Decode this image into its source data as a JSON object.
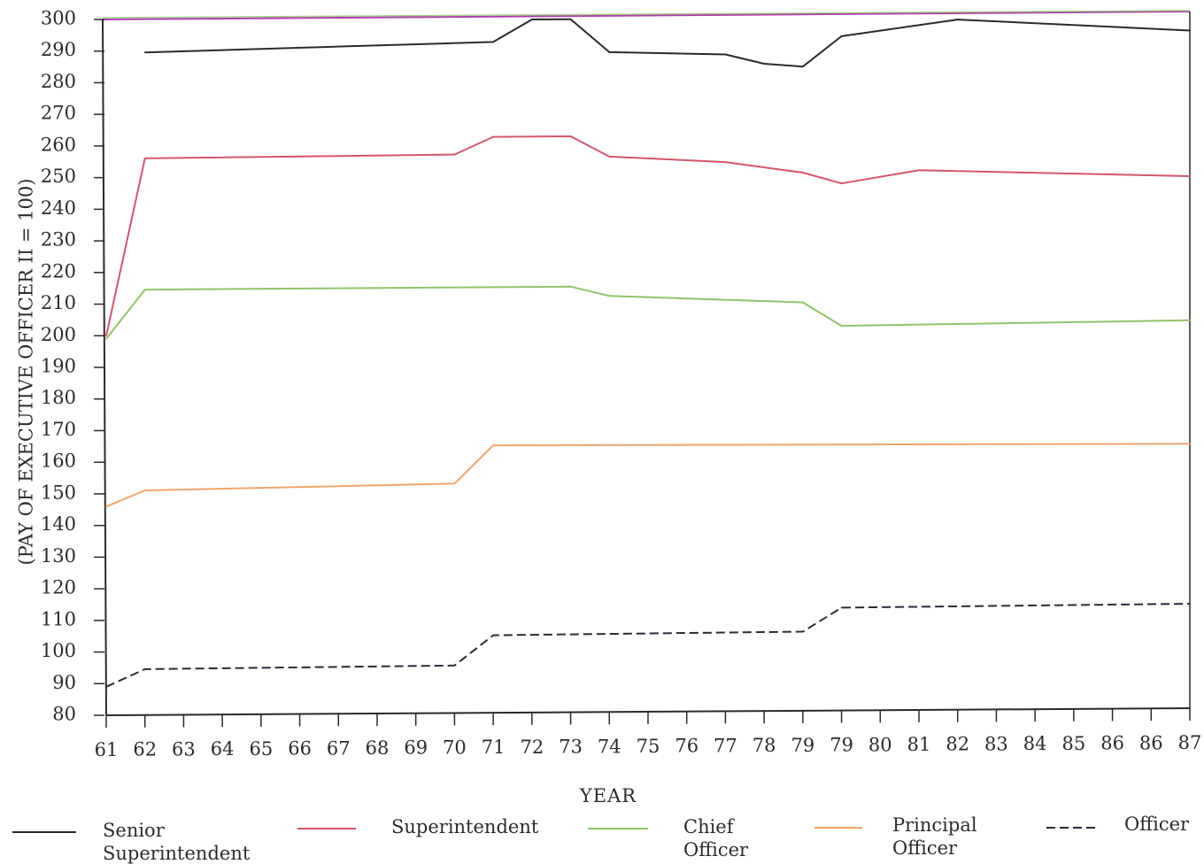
{
  "chart_data": {
    "type": "line",
    "xlabel": "YEAR",
    "ylabel": "(PAY OF  EXECUTIVE OFFICER II = 100)",
    "x_tick_labels": [
      "61",
      "62",
      "63",
      "64",
      "65",
      "66",
      "67",
      "68",
      "69",
      "70",
      "71",
      "72",
      "73",
      "74",
      "75",
      "76",
      "77",
      "78",
      "79",
      "79",
      "80",
      "81",
      "82",
      "83",
      "84",
      "85",
      "86",
      "86",
      "87"
    ],
    "ylim": [
      80,
      300
    ],
    "y_ticks": [
      80,
      90,
      100,
      110,
      120,
      130,
      140,
      150,
      160,
      170,
      180,
      190,
      200,
      210,
      220,
      230,
      240,
      250,
      260,
      270,
      280,
      290,
      300
    ],
    "grid": false,
    "legend_position": "bottom",
    "series": [
      {
        "name": "Senior Superintendent",
        "legend_lines": [
          "Senior",
          "Superintendent"
        ],
        "color": "#2a2a2a",
        "dash": "solid",
        "points": [
          [
            1,
            289.5
          ],
          [
            10,
            292
          ],
          [
            11,
            299
          ],
          [
            12,
            299
          ],
          [
            13,
            288.5
          ],
          [
            16,
            287.5
          ],
          [
            17,
            284.5
          ],
          [
            18,
            283.5
          ],
          [
            19,
            293
          ],
          [
            22,
            298
          ],
          [
            28,
            294
          ]
        ]
      },
      {
        "name": "Superintendent",
        "legend_lines": [
          "Superintendent"
        ],
        "color": "#d4566b",
        "dash": "solid",
        "points": [
          [
            0,
            200
          ],
          [
            1,
            256
          ],
          [
            9,
            256.5
          ],
          [
            10,
            262
          ],
          [
            12,
            262
          ],
          [
            13,
            255.5
          ],
          [
            16,
            253.5
          ],
          [
            18,
            250
          ],
          [
            19,
            246.5
          ],
          [
            21,
            250.5
          ],
          [
            28,
            248
          ]
        ]
      },
      {
        "name": "Chief Officer",
        "legend_lines": [
          "Chief",
          "Officer"
        ],
        "color": "#8fc46a",
        "dash": "solid",
        "points": [
          [
            0,
            199
          ],
          [
            1,
            214.5
          ],
          [
            12,
            214.5
          ],
          [
            13,
            211.5
          ],
          [
            18,
            209
          ],
          [
            19,
            201.5
          ],
          [
            28,
            202.5
          ]
        ]
      },
      {
        "name": "Principal Officer",
        "legend_lines": [
          "Principal",
          "Officer"
        ],
        "color": "#f0a56a",
        "dash": "solid",
        "points": [
          [
            0,
            146
          ],
          [
            1,
            151
          ],
          [
            9,
            152.5
          ],
          [
            10,
            164.5
          ],
          [
            28,
            163.5
          ]
        ]
      },
      {
        "name": "Officer",
        "legend_lines": [
          "Officer"
        ],
        "color": "#2a2a3a",
        "dash": "dashed",
        "points": [
          [
            0,
            89
          ],
          [
            1,
            94.5
          ],
          [
            9,
            95
          ],
          [
            10,
            104.5
          ],
          [
            18,
            105
          ],
          [
            19,
            112.5
          ],
          [
            28,
            113
          ]
        ]
      }
    ]
  }
}
